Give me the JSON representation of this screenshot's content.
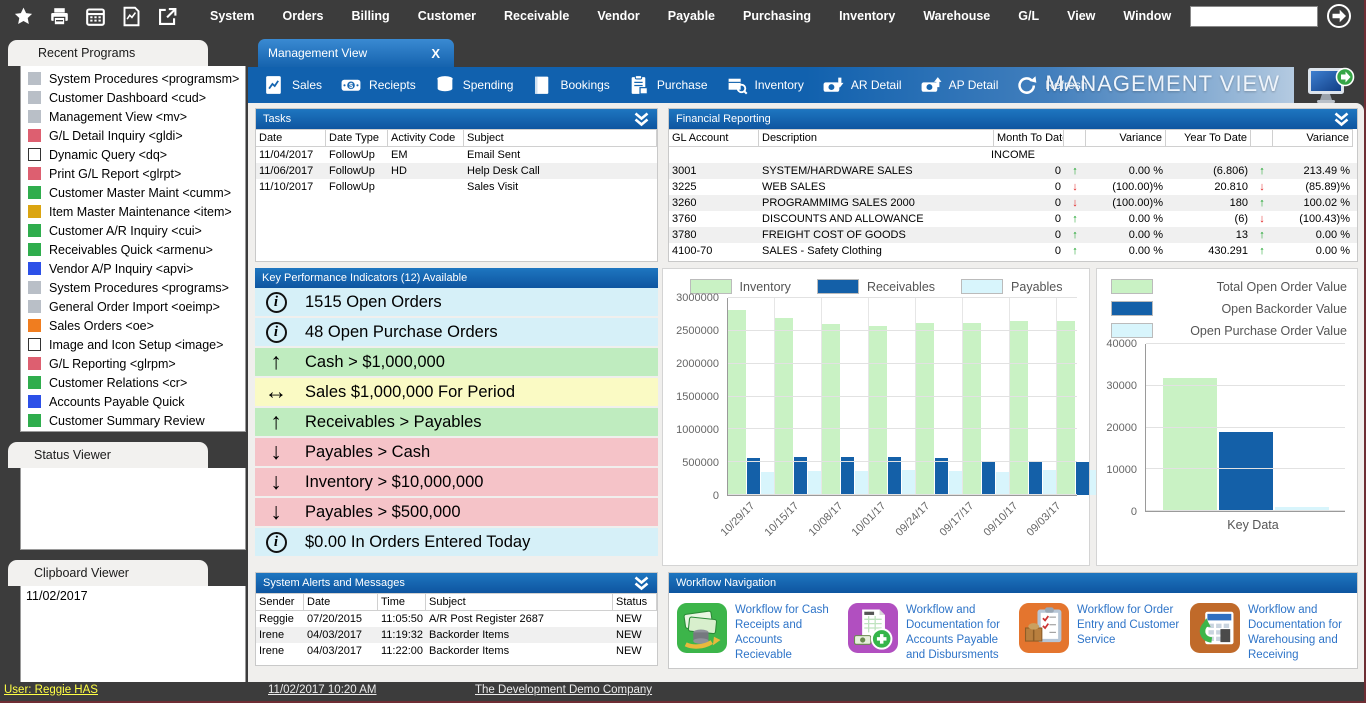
{
  "menubar": {
    "icons": [
      "favorites-icon",
      "print-icon",
      "calendar-icon",
      "report-icon",
      "export-icon"
    ],
    "items": [
      "System",
      "Orders",
      "Billing",
      "Customer",
      "Receivable",
      "Vendor",
      "Payable",
      "Purchasing",
      "Inventory",
      "Warehouse",
      "G/L",
      "View",
      "Window"
    ],
    "search_value": ""
  },
  "sidebar": {
    "recent_programs_title": "Recent Programs",
    "programs": [
      {
        "label": "System Procedures <programsm>",
        "color": "#b9bfc7"
      },
      {
        "label": "Customer Dashboard <cud>",
        "color": "#b9bfc7"
      },
      {
        "label": "Management View <mv>",
        "color": "#b9bfc7"
      },
      {
        "label": "G/L Detail Inquiry <gldi>",
        "color": "#dd5f70"
      },
      {
        "label": "Dynamic Query <dq>",
        "color": "#ffffff"
      },
      {
        "label": "Print G/L Report <glrpt>",
        "color": "#dd5f70"
      },
      {
        "label": "Customer Master Maint <cumm>",
        "color": "#2fad4d"
      },
      {
        "label": "Item Master Maintenance <item>",
        "color": "#dba511"
      },
      {
        "label": "Customer A/R Inquiry <cui>",
        "color": "#2fad4d"
      },
      {
        "label": "Receivables Quick <armenu>",
        "color": "#2fad4d"
      },
      {
        "label": "Vendor A/P Inquiry <apvi>",
        "color": "#2c50e8"
      },
      {
        "label": "System Procedures <programs>",
        "color": "#b9bfc7"
      },
      {
        "label": "General Order Import <oeimp>",
        "color": "#b9bfc7"
      },
      {
        "label": "Sales Orders <oe>",
        "color": "#f07d1f"
      },
      {
        "label": "Image and Icon Setup <image>",
        "color": "#ffffff"
      },
      {
        "label": "G/L Reporting <glrpm>",
        "color": "#dd5f70"
      },
      {
        "label": "Customer Relations <cr>",
        "color": "#2fad4d"
      },
      {
        "label": "Accounts Payable Quick",
        "color": "#2c50e8"
      },
      {
        "label": "Customer Summary Review",
        "color": "#2fad4d"
      }
    ],
    "status_viewer_title": "Status Viewer",
    "clipboard_viewer_title": "Clipboard Viewer",
    "clipboard_content": "11/02/2017"
  },
  "tab": {
    "title": "Management View",
    "close_label": "X"
  },
  "toolbar": {
    "buttons": [
      {
        "label": "Sales",
        "icon": "sales-chart-icon"
      },
      {
        "label": "Reciepts",
        "icon": "receipts-money-icon"
      },
      {
        "label": "Spending",
        "icon": "spending-coins-icon"
      },
      {
        "label": "Bookings",
        "icon": "bookings-book-icon"
      },
      {
        "label": "Purchase",
        "icon": "purchase-clipboard-icon"
      },
      {
        "label": "Inventory",
        "icon": "inventory-box-search-icon"
      },
      {
        "label": "AR Detail",
        "icon": "ar-detail-icon"
      },
      {
        "label": "AP Detail",
        "icon": "ap-detail-icon"
      },
      {
        "label": "Refresh",
        "icon": "refresh-icon"
      }
    ],
    "banner": "MANAGEMENT VIEW"
  },
  "panels": {
    "tasks": {
      "title": "Tasks",
      "columns": [
        "Date",
        "Date Type",
        "Activity Code",
        "Subject"
      ],
      "rows": [
        [
          "11/04/2017",
          "FollowUp",
          "EM",
          "Email Sent"
        ],
        [
          "11/06/2017",
          "FollowUp",
          "HD",
          "Help Desk Call"
        ],
        [
          "11/10/2017",
          "FollowUp",
          "",
          "Sales Visit"
        ]
      ]
    },
    "financial": {
      "title": "Financial Reporting",
      "columns": [
        "GL Account",
        "Description",
        "Month To Date",
        "",
        "Variance",
        "Year To Date",
        "",
        "Variance"
      ],
      "section_label": "INCOME",
      "rows": [
        {
          "gl": "3001",
          "desc": "SYSTEM/HARDWARE SALES",
          "mtd": "0",
          "mtd_dir": "up",
          "mtd_var": "0.00 %",
          "ytd": "(6.806)",
          "ytd_dir": "up",
          "ytd_var": "213.49 %"
        },
        {
          "gl": "3225",
          "desc": "WEB SALES",
          "mtd": "0",
          "mtd_dir": "down",
          "mtd_var": "(100.00)%",
          "ytd": "20.810",
          "ytd_dir": "down",
          "ytd_var": "(85.89)%"
        },
        {
          "gl": "3260",
          "desc": "PROGRAMMIMG SALES 2000",
          "mtd": "0",
          "mtd_dir": "down",
          "mtd_var": "(100.00)%",
          "ytd": "180",
          "ytd_dir": "up",
          "ytd_var": "100.02 %"
        },
        {
          "gl": "3760",
          "desc": "DISCOUNTS AND ALLOWANCE",
          "mtd": "0",
          "mtd_dir": "up",
          "mtd_var": "0.00 %",
          "ytd": "(6)",
          "ytd_dir": "down",
          "ytd_var": "(100.43)%"
        },
        {
          "gl": "3780",
          "desc": "FREIGHT COST OF GOODS",
          "mtd": "0",
          "mtd_dir": "up",
          "mtd_var": "0.00 %",
          "ytd": "13",
          "ytd_dir": "up",
          "ytd_var": "0.00 %"
        },
        {
          "gl": "4100-70",
          "desc": "SALES - Safety Clothing",
          "mtd": "0",
          "mtd_dir": "up",
          "mtd_var": "0.00 %",
          "ytd": "430.291",
          "ytd_dir": "up",
          "ytd_var": "0.00 %"
        }
      ]
    },
    "kpi": {
      "title": "Key Performance Indicators (12) Available",
      "items": [
        {
          "icon": "info",
          "text": "1515 Open Orders",
          "bg": "#d6f0f8"
        },
        {
          "icon": "info",
          "text": "48 Open Purchase Orders",
          "bg": "#d6f0f8"
        },
        {
          "icon": "up",
          "text": "Cash > $1,000,000",
          "bg": "#bfecbf"
        },
        {
          "icon": "leftright",
          "text": "Sales $1,000,000 For Period",
          "bg": "#fafac4"
        },
        {
          "icon": "up",
          "text": "Receivables > Payables",
          "bg": "#bfecbf"
        },
        {
          "icon": "down",
          "text": "Payables > Cash",
          "bg": "#f5c3c8"
        },
        {
          "icon": "down",
          "text": "Inventory > $10,000,000",
          "bg": "#f5c3c8"
        },
        {
          "icon": "down",
          "text": "Payables > $500,000",
          "bg": "#f5c3c8"
        },
        {
          "icon": "info",
          "text": "$0.00 In Orders Entered Today",
          "bg": "#d6f0f8"
        }
      ]
    },
    "alerts": {
      "title": "System Alerts and Messages",
      "columns": [
        "Sender",
        "Date",
        "Time",
        "Subject",
        "Status"
      ],
      "rows": [
        [
          "Reggie",
          "07/20/2015",
          "11:05:50",
          "A/R Post Register 2687",
          "NEW"
        ],
        [
          "Irene",
          "04/03/2017",
          "11:19:32",
          "Backorder Items",
          "NEW"
        ],
        [
          "Irene",
          "04/03/2017",
          "11:22:00",
          "Backorder Items",
          "NEW"
        ]
      ]
    },
    "workflow": {
      "title": "Workflow Navigation",
      "items": [
        {
          "icon": "cash-receipts-icon",
          "label": "Workflow for Cash Receipts and Accounts Recievable"
        },
        {
          "icon": "payable-disbursements-icon",
          "label": "Workflow and Documentation for Accounts Payable and Disbursments"
        },
        {
          "icon": "order-entry-icon",
          "label": "Workflow for Order Entry and Customer Service"
        },
        {
          "icon": "warehousing-icon",
          "label": "Workflow and Documentation for Warehousing and Receiving"
        }
      ]
    }
  },
  "chart_data": [
    {
      "type": "bar",
      "title": "",
      "categories": [
        "10/29/17",
        "10/15/17",
        "10/08/17",
        "10/01/17",
        "09/24/17",
        "09/17/17",
        "09/10/17",
        "09/03/17"
      ],
      "series": [
        {
          "name": "Inventory",
          "color": "#c9f2c4",
          "values": [
            2820000,
            2700000,
            2610000,
            2580000,
            2625000,
            2625000,
            2645000,
            2645000
          ]
        },
        {
          "name": "Receivables",
          "color": "#1460a8",
          "values": [
            570000,
            585000,
            585000,
            585000,
            565000,
            510000,
            510000,
            510000
          ]
        },
        {
          "name": "Payables",
          "color": "#d8f5fc",
          "values": [
            355000,
            370000,
            365000,
            385000,
            365000,
            350000,
            375000,
            385000
          ]
        }
      ],
      "ylim": [
        0,
        3000000
      ],
      "yticks": [
        0,
        500000,
        1000000,
        1500000,
        2000000,
        2500000,
        3000000
      ],
      "legend_position": "top",
      "grid": true
    },
    {
      "type": "bar",
      "title": "",
      "categories": [
        "Key Data"
      ],
      "series": [
        {
          "name": "Total Open Order Value",
          "color": "#c9f2c4",
          "values": [
            31800
          ]
        },
        {
          "name": "Open Backorder Value",
          "color": "#1460a8",
          "values": [
            19000
          ]
        },
        {
          "name": "Open Purchase Order Value",
          "color": "#d8f5fc",
          "values": [
            900
          ]
        }
      ],
      "ylim": [
        0,
        40000
      ],
      "yticks": [
        0,
        10000,
        20000,
        30000,
        40000
      ],
      "legend_position": "top",
      "xlabel": "Key Data",
      "grid": false
    }
  ],
  "statusbar": {
    "user": "User: Reggie HAS",
    "datetime": "11/02/2017  10:20 AM",
    "company": "The Development Demo Company"
  }
}
